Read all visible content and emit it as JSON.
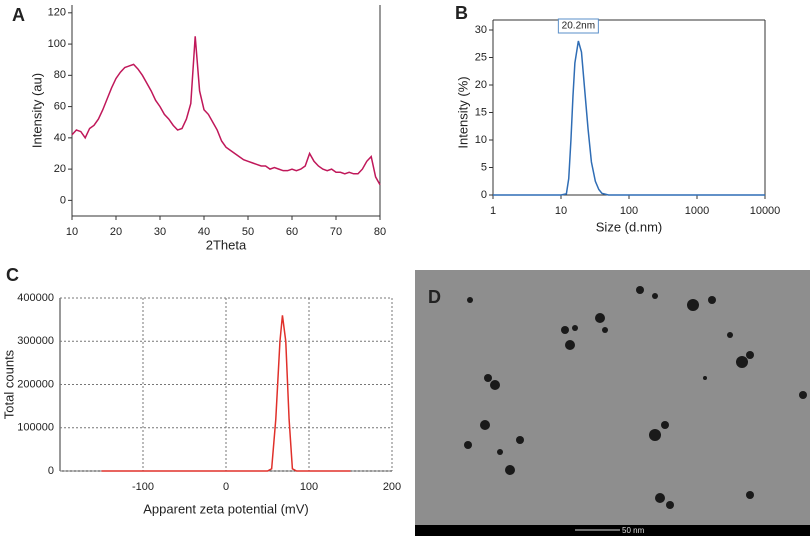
{
  "chart_data": [
    {
      "type": "line",
      "panel_label": "A",
      "x_label": "2Theta",
      "y_label": "Intensity (au)",
      "x": [
        10,
        11,
        12,
        13,
        14,
        15,
        16,
        17,
        18,
        19,
        20,
        21,
        22,
        23,
        24,
        25,
        26,
        27,
        28,
        29,
        30,
        31,
        32,
        33,
        34,
        35,
        36,
        37,
        38,
        39,
        40,
        41,
        42,
        43,
        44,
        45,
        46,
        47,
        48,
        49,
        50,
        51,
        52,
        53,
        54,
        55,
        56,
        57,
        58,
        59,
        60,
        61,
        62,
        63,
        64,
        65,
        66,
        67,
        68,
        69,
        70,
        71,
        72,
        73,
        74,
        75,
        76,
        77,
        78,
        79,
        80
      ],
      "series": [
        {
          "color": "#c0185a",
          "values": [
            42,
            45,
            44,
            40,
            46,
            48,
            52,
            58,
            65,
            72,
            78,
            82,
            85,
            86,
            87,
            84,
            80,
            75,
            70,
            64,
            60,
            55,
            52,
            48,
            45,
            46,
            52,
            62,
            105,
            70,
            58,
            55,
            50,
            45,
            38,
            34,
            32,
            30,
            28,
            26,
            25,
            24,
            23,
            22,
            22,
            20,
            21,
            20,
            19,
            19,
            20,
            19,
            20,
            22,
            30,
            25,
            22,
            20,
            19,
            20,
            18,
            18,
            17,
            18,
            17,
            17,
            20,
            25,
            28,
            15,
            10
          ]
        }
      ],
      "xlim": [
        10,
        80
      ],
      "xticks": [
        10,
        20,
        30,
        40,
        50,
        60,
        70,
        80
      ],
      "ylim": [
        -10,
        125
      ],
      "yticks": [
        0,
        20,
        40,
        60,
        80,
        100,
        120
      ]
    },
    {
      "type": "line",
      "panel_label": "B",
      "x_label": "Size (d.nm)",
      "y_label": "Intensity (%)",
      "xscale": "log",
      "annotation": "20.2nm",
      "x": [
        1,
        10,
        12,
        13,
        14,
        15,
        16,
        18,
        20,
        22,
        25,
        28,
        32,
        36,
        40,
        50,
        10000
      ],
      "series": [
        {
          "color": "#2f6db5",
          "values": [
            0,
            0,
            0.2,
            3,
            10,
            18,
            24,
            28,
            26,
            20,
            12,
            6,
            2.5,
            1,
            0.3,
            0,
            0
          ]
        }
      ],
      "xlim": [
        1,
        10000
      ],
      "xticks": [
        1,
        10,
        100,
        1000,
        10000
      ],
      "ylim": [
        0,
        30
      ],
      "yticks": [
        0,
        5,
        10,
        15,
        20,
        25,
        30
      ]
    },
    {
      "type": "line",
      "panel_label": "C",
      "x_label": "Apparent zeta potential (mV)",
      "y_label": "Total counts",
      "grid": true,
      "x": [
        -150,
        50,
        55,
        60,
        65,
        68,
        72,
        76,
        80,
        85,
        150
      ],
      "series": [
        {
          "color": "#e0302a",
          "values": [
            0,
            0,
            5000,
            120000,
            300000,
            360000,
            300000,
            120000,
            5000,
            0,
            0
          ]
        }
      ],
      "xlim": [
        -200,
        200
      ],
      "xticks": [
        -100,
        0,
        100,
        200
      ],
      "ylim": [
        0,
        400000
      ],
      "yticks": [
        0,
        100000,
        200000,
        300000,
        400000
      ]
    }
  ],
  "image": {
    "panel_label": "D",
    "scale_bar": "50 nm"
  }
}
